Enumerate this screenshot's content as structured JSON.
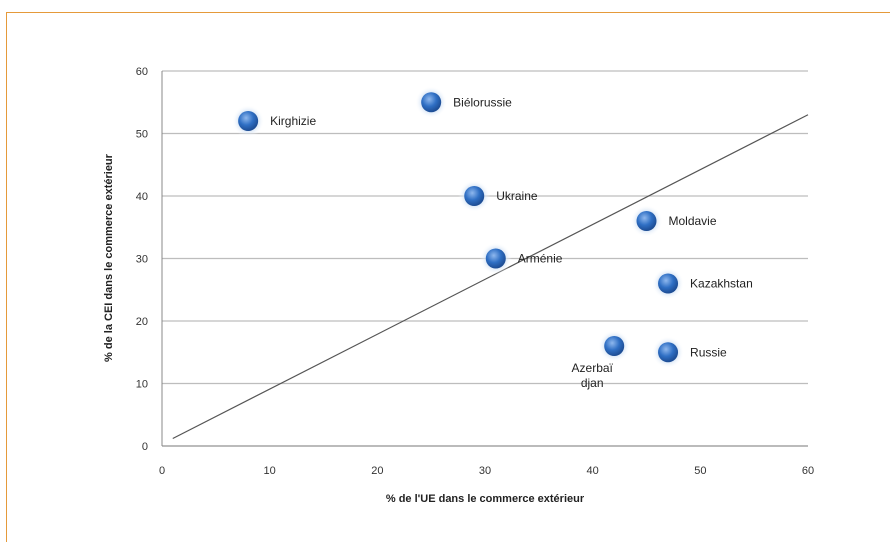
{
  "colors": {
    "frame": "#e59a3a",
    "point": "#2f6fc4",
    "grid": "#bdbdbd",
    "line": "#555555"
  },
  "chart_data": {
    "type": "scatter",
    "title": "",
    "xlabel": "% de l'UE dans le commerce extérieur",
    "ylabel": "% de la CEI dans le commerce extérieur",
    "xlim": [
      0,
      60
    ],
    "ylim": [
      0,
      60
    ],
    "xticks": [
      0,
      10,
      20,
      30,
      40,
      50,
      60
    ],
    "yticks": [
      0,
      10,
      20,
      30,
      40,
      50,
      60
    ],
    "grid": "horizontal",
    "legend": "none",
    "points": [
      {
        "label": "Kirghizie",
        "x": 8,
        "y": 52
      },
      {
        "label": "Biélorussie",
        "x": 25,
        "y": 55
      },
      {
        "label": "Ukraine",
        "x": 29,
        "y": 40
      },
      {
        "label": "Arménie",
        "x": 31,
        "y": 30
      },
      {
        "label": "Moldavie",
        "x": 45,
        "y": 36
      },
      {
        "label": "Kazakhstan",
        "x": 47,
        "y": 26
      },
      {
        "label": "Azerbaï\ndjan",
        "x": 42,
        "y": 16
      },
      {
        "label": "Russie",
        "x": 47,
        "y": 15
      }
    ],
    "trendline": {
      "x": [
        1,
        60
      ],
      "y": [
        1.2,
        53
      ]
    }
  }
}
